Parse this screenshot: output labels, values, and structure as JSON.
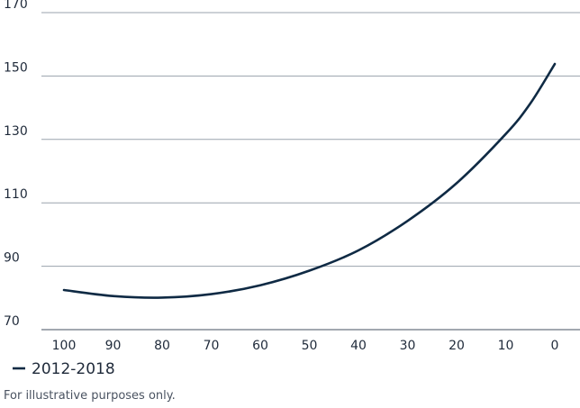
{
  "chart_data": {
    "type": "line",
    "title": "",
    "xlabel": "",
    "ylabel": "",
    "x_reversed": true,
    "xlim": [
      100,
      0
    ],
    "ylim": [
      70,
      170
    ],
    "x_ticks": [
      100,
      90,
      80,
      70,
      60,
      50,
      40,
      30,
      20,
      10,
      0
    ],
    "y_ticks": [
      70,
      90,
      110,
      130,
      150,
      170
    ],
    "grid": "horizontal",
    "legend": "bottom-left",
    "series": [
      {
        "name": "2012-2018",
        "color": "#0f2a44",
        "x": [
          100,
          90,
          80,
          70,
          60,
          50,
          40,
          30,
          20,
          10,
          5,
          0
        ],
        "y": [
          82.5,
          80.6,
          80.1,
          81.2,
          84.0,
          88.6,
          95.0,
          104.3,
          116.2,
          131.7,
          141.3,
          153.8
        ]
      }
    ],
    "footnote": "For illustrative purposes only."
  }
}
